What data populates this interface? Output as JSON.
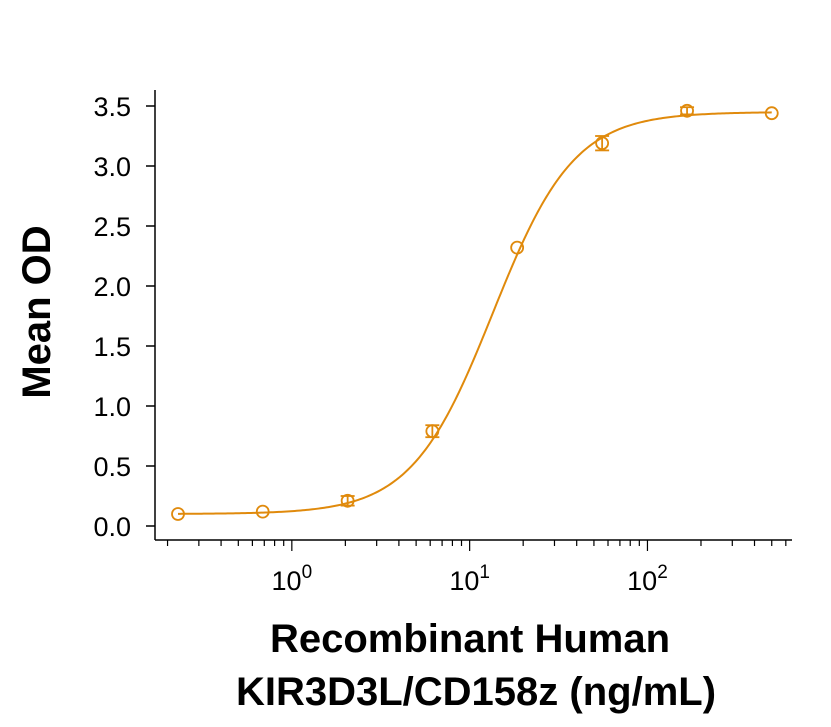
{
  "chart_data": {
    "type": "line",
    "title": "",
    "xlabel_lines": [
      "Recombinant Human",
      "KIR3D3L/CD158z (ng/mL)"
    ],
    "ylabel": "Mean OD",
    "x_scale": "log",
    "xlim": [
      0.17,
      650
    ],
    "ylim": [
      0,
      3.5
    ],
    "y_ticks": [
      {
        "value": 0.0,
        "label": "0.0"
      },
      {
        "value": 0.5,
        "label": "0.5"
      },
      {
        "value": 1.0,
        "label": "1.0"
      },
      {
        "value": 1.5,
        "label": "1.5"
      },
      {
        "value": 2.0,
        "label": "2.0"
      },
      {
        "value": 2.5,
        "label": "2.5"
      },
      {
        "value": 3.0,
        "label": "3.0"
      },
      {
        "value": 3.5,
        "label": "3.5"
      }
    ],
    "x_ticks": [
      {
        "value": 1,
        "base": "10",
        "exp": "0"
      },
      {
        "value": 10,
        "base": "10",
        "exp": "1"
      },
      {
        "value": 100,
        "base": "10",
        "exp": "2"
      }
    ],
    "grid": false,
    "legend": "none",
    "color": "#E08A0C",
    "series": [
      {
        "points": [
          {
            "x": 0.229,
            "y": 0.1,
            "err": 0.0
          },
          {
            "x": 0.686,
            "y": 0.12,
            "err": 0.0
          },
          {
            "x": 2.06,
            "y": 0.21,
            "err": 0.04
          },
          {
            "x": 6.17,
            "y": 0.79,
            "err": 0.05
          },
          {
            "x": 18.5,
            "y": 2.32,
            "err": 0.0
          },
          {
            "x": 55.6,
            "y": 3.19,
            "err": 0.06
          },
          {
            "x": 167,
            "y": 3.46,
            "err": 0.03
          },
          {
            "x": 500,
            "y": 3.44,
            "err": 0.0
          }
        ],
        "fit": {
          "model": "4PL",
          "bottom": 0.1,
          "top": 3.45,
          "ec50": 13.5,
          "hill": 1.9
        }
      }
    ]
  }
}
